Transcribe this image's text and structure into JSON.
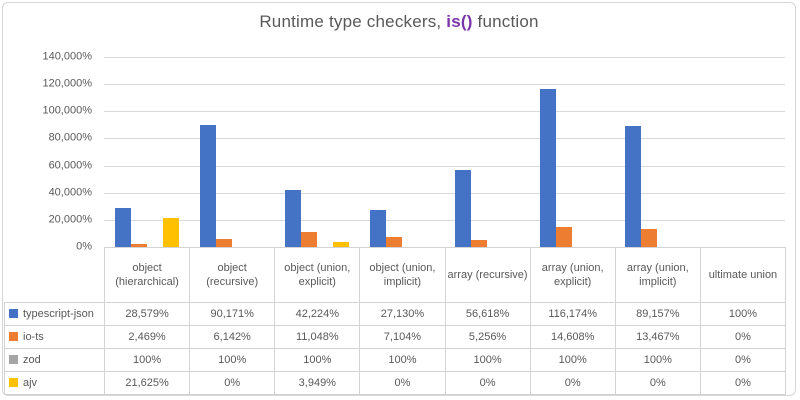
{
  "title": {
    "prefix": "Runtime type checkers, ",
    "highlight": "is()",
    "suffix": " function"
  },
  "colors": {
    "title_text": "#595959",
    "title_highlight": "#7A35A8",
    "gridline": "#D9D9D9",
    "table_border": "#D3D3D3",
    "series_blue": "#4472C4",
    "series_orange": "#ED7D31",
    "series_gray": "#A5A5A5",
    "series_yellow": "#FFC000"
  },
  "chart_data": {
    "type": "bar",
    "title": "Runtime type checkers, is() function",
    "xlabel": "",
    "ylabel": "",
    "ylim": [
      0,
      140000
    ],
    "ytick_step": 20000,
    "ytick_labels": [
      "0%",
      "20,000%",
      "40,000%",
      "60,000%",
      "80,000%",
      "100,000%",
      "120,000%",
      "140,000%"
    ],
    "grid": true,
    "legend_position": "data-table-left",
    "categories": [
      "object (hierarchical)",
      "object (recursive)",
      "object (union, explicit)",
      "object (union, implicit)",
      "array (recursive)",
      "array (union, explicit)",
      "array (union, implicit)",
      "ultimate union"
    ],
    "series": [
      {
        "name": "typescript-json",
        "color": "#4472C4",
        "values": [
          28579,
          90171,
          42224,
          27130,
          56618,
          116174,
          89157,
          100
        ],
        "labels": [
          "28,579%",
          "90,171%",
          "42,224%",
          "27,130%",
          "56,618%",
          "116,174%",
          "89,157%",
          "100%"
        ]
      },
      {
        "name": "io-ts",
        "color": "#ED7D31",
        "values": [
          2469,
          6142,
          11048,
          7104,
          5256,
          14608,
          13467,
          0
        ],
        "labels": [
          "2,469%",
          "6,142%",
          "11,048%",
          "7,104%",
          "5,256%",
          "14,608%",
          "13,467%",
          "0%"
        ]
      },
      {
        "name": "zod",
        "color": "#A5A5A5",
        "values": [
          100,
          100,
          100,
          100,
          100,
          100,
          100,
          0
        ],
        "labels": [
          "100%",
          "100%",
          "100%",
          "100%",
          "100%",
          "100%",
          "100%",
          "0%"
        ]
      },
      {
        "name": "ajv",
        "color": "#FFC000",
        "values": [
          21625,
          0,
          3949,
          0,
          0,
          0,
          0,
          0
        ],
        "labels": [
          "21,625%",
          "0%",
          "3,949%",
          "0%",
          "0%",
          "0%",
          "0%",
          "0%"
        ]
      }
    ]
  }
}
